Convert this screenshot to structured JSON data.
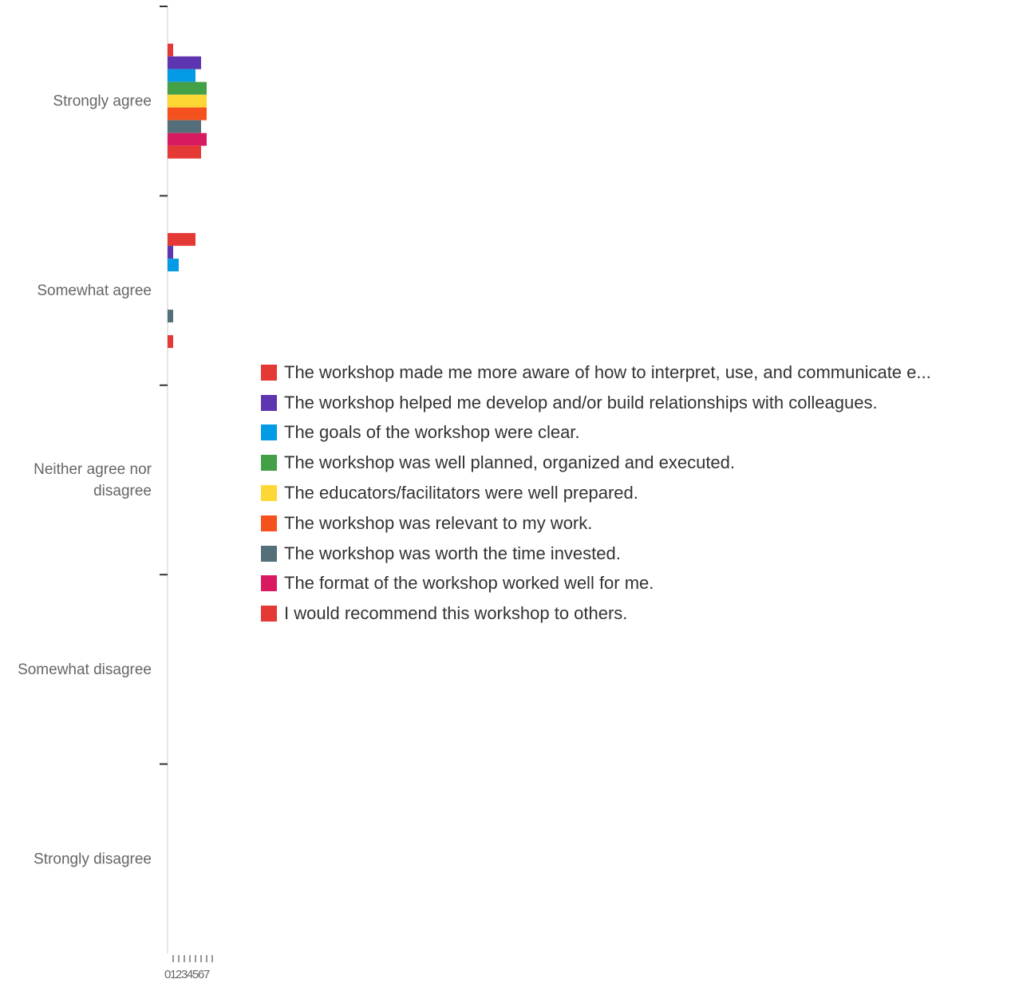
{
  "chart_data": {
    "type": "bar",
    "orientation": "horizontal",
    "categories": [
      "Strongly agree",
      "Somewhat agree",
      "Neither agree nor disagree",
      "Somewhat disagree",
      "Strongly disagree"
    ],
    "x_ticks": [
      "0",
      "1",
      "2",
      "3",
      "4",
      "5",
      "6",
      "7"
    ],
    "xlim": [
      0,
      7
    ],
    "legend_position": "right",
    "series": [
      {
        "name": "The workshop made me more aware of how to interpret, use, and communicate e...",
        "color": "#e53935",
        "values": [
          1,
          5,
          0,
          0,
          0
        ]
      },
      {
        "name": "The workshop helped me develop and/or build relationships with colleagues.",
        "color": "#5e35b1",
        "values": [
          6,
          1,
          0,
          0,
          0
        ]
      },
      {
        "name": "The goals of the workshop were clear.",
        "color": "#039be5",
        "values": [
          5,
          2,
          0,
          0,
          0
        ]
      },
      {
        "name": "The workshop was well planned, organized and executed.",
        "color": "#43a047",
        "values": [
          7,
          0,
          0,
          0,
          0
        ]
      },
      {
        "name": "The educators/facilitators were well prepared.",
        "color": "#fdd835",
        "values": [
          7,
          0,
          0,
          0,
          0
        ]
      },
      {
        "name": "The workshop was relevant to my work.",
        "color": "#f4511e",
        "values": [
          7,
          0,
          0,
          0,
          0
        ]
      },
      {
        "name": "The workshop was worth the time invested.",
        "color": "#546e7a",
        "values": [
          6,
          1,
          0,
          0,
          0
        ]
      },
      {
        "name": "The format of the workshop worked well for me.",
        "color": "#d81b60",
        "values": [
          7,
          0,
          0,
          0,
          0
        ]
      },
      {
        "name": "I would recommend this workshop to others.",
        "color": "#e53935",
        "values": [
          6,
          1,
          0,
          0,
          0
        ]
      }
    ]
  }
}
